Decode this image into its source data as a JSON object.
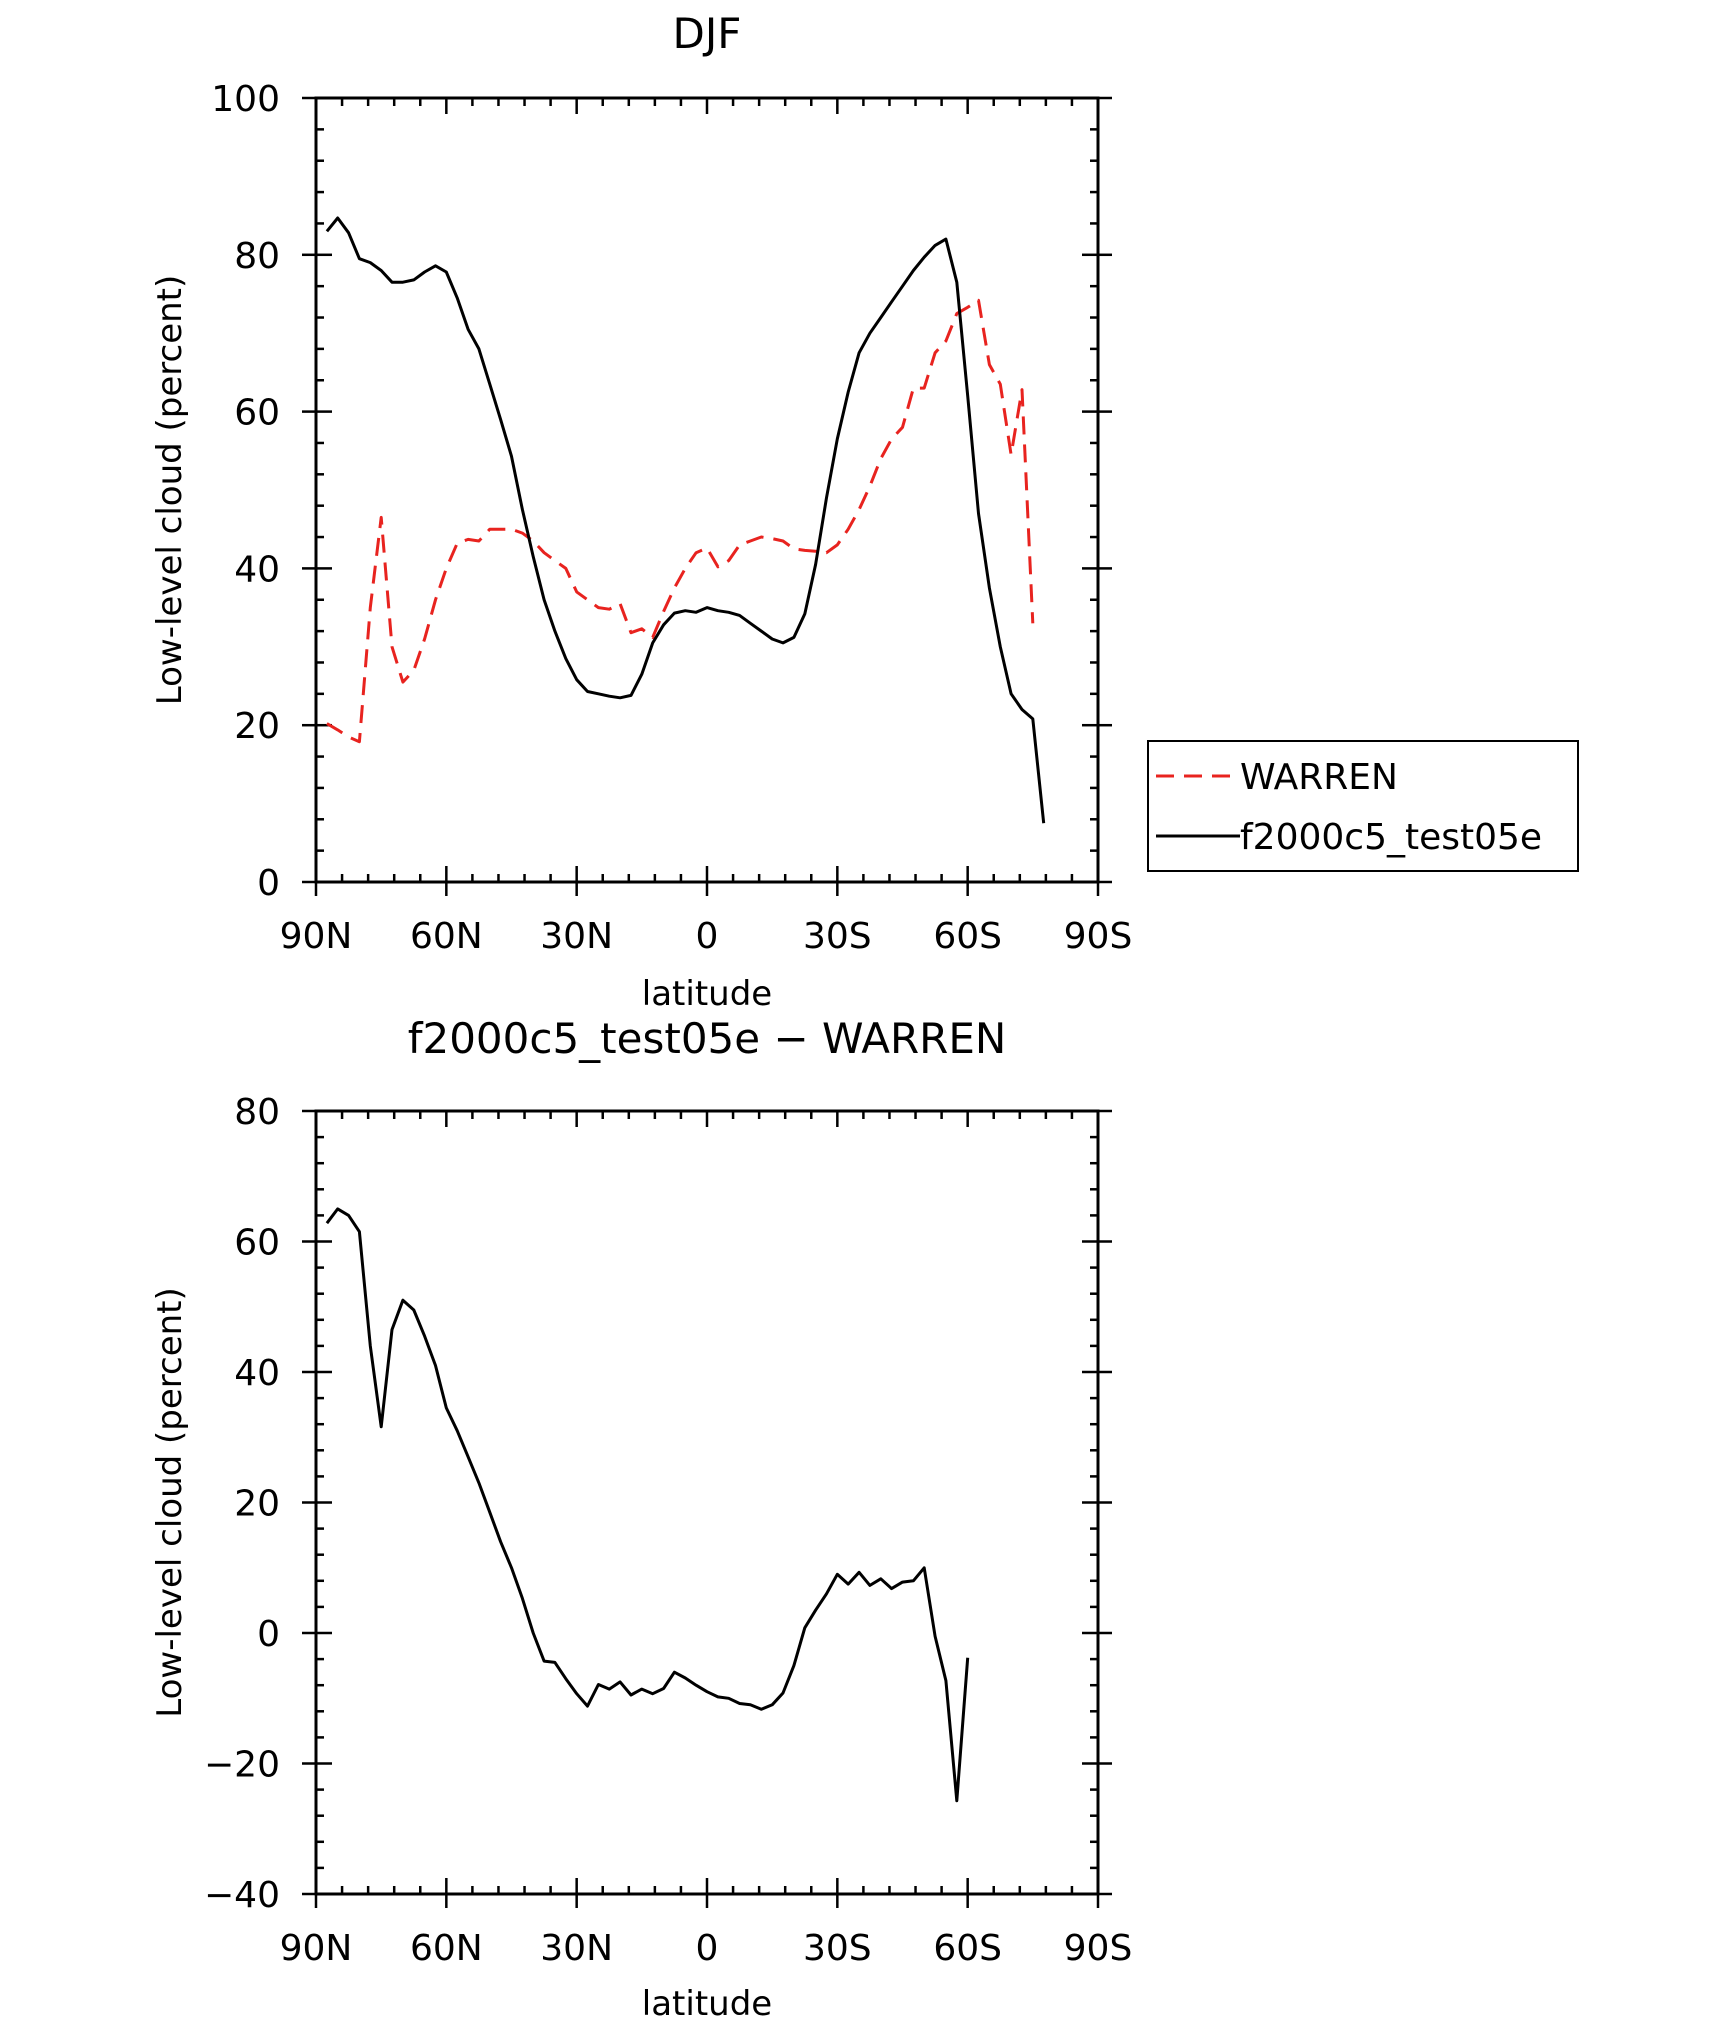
{
  "chart_data": [
    {
      "type": "line",
      "title": "DJF",
      "xlabel": "latitude",
      "ylabel": "Low-level cloud (percent)",
      "xlim": [
        90,
        -90
      ],
      "ylim": [
        0,
        100
      ],
      "xticks": [
        {
          "value": 90,
          "label": "90N"
        },
        {
          "value": 60,
          "label": "60N"
        },
        {
          "value": 30,
          "label": "30N"
        },
        {
          "value": 0,
          "label": "0"
        },
        {
          "value": -30,
          "label": "30S"
        },
        {
          "value": -60,
          "label": "60S"
        },
        {
          "value": -90,
          "label": "90S"
        }
      ],
      "yticks": [
        {
          "value": 0,
          "label": "0"
        },
        {
          "value": 20,
          "label": "20"
        },
        {
          "value": 40,
          "label": "40"
        },
        {
          "value": 60,
          "label": "60"
        },
        {
          "value": 80,
          "label": "80"
        },
        {
          "value": 100,
          "label": "100"
        }
      ],
      "legend": {
        "position": "right"
      },
      "series": [
        {
          "name": "WARREN",
          "color": "#e8231f",
          "dash": "dashed",
          "points": [
            [
              87.5,
              20.2
            ],
            [
              85,
              19.4
            ],
            [
              82.5,
              18.5
            ],
            [
              80,
              17.9
            ],
            [
              77.5,
              35
            ],
            [
              75,
              46.5
            ],
            [
              72.5,
              30
            ],
            [
              70,
              25.5
            ],
            [
              67.5,
              27
            ],
            [
              65,
              31
            ],
            [
              62.5,
              36
            ],
            [
              60,
              40
            ],
            [
              57.5,
              43.2
            ],
            [
              55,
              43.7
            ],
            [
              52.5,
              43.5
            ],
            [
              50,
              45
            ],
            [
              47.5,
              45
            ],
            [
              45,
              45
            ],
            [
              42.5,
              44.5
            ],
            [
              40,
              43.5
            ],
            [
              37.5,
              42
            ],
            [
              35,
              41
            ],
            [
              32.5,
              40
            ],
            [
              30,
              37
            ],
            [
              27.5,
              36
            ],
            [
              25,
              35
            ],
            [
              22.5,
              34.8
            ],
            [
              20,
              35.5
            ],
            [
              17.5,
              31.8
            ],
            [
              15,
              32.3
            ],
            [
              12.5,
              31.2
            ],
            [
              10,
              34.5
            ],
            [
              7.5,
              37.5
            ],
            [
              5,
              40
            ],
            [
              2.5,
              42
            ],
            [
              0,
              42.6
            ],
            [
              -2.5,
              40.2
            ],
            [
              -5,
              41
            ],
            [
              -7.5,
              43
            ],
            [
              -10,
              43.5
            ],
            [
              -12.5,
              44
            ],
            [
              -15,
              43.8
            ],
            [
              -17.5,
              43.5
            ],
            [
              -20,
              42.5
            ],
            [
              -22.5,
              42.3
            ],
            [
              -25,
              42.2
            ],
            [
              -27.5,
              42
            ],
            [
              -30,
              43
            ],
            [
              -32.5,
              45
            ],
            [
              -35,
              47.5
            ],
            [
              -37.5,
              50.5
            ],
            [
              -40,
              54
            ],
            [
              -42.5,
              56.5
            ],
            [
              -45,
              58
            ],
            [
              -47.5,
              63
            ],
            [
              -50,
              63
            ],
            [
              -52.5,
              67.5
            ],
            [
              -55,
              69
            ],
            [
              -57.5,
              72.5
            ],
            [
              -60,
              73.3
            ],
            [
              -62.5,
              74.2
            ],
            [
              -65,
              66
            ],
            [
              -67.5,
              63.5
            ],
            [
              -70,
              54.5
            ],
            [
              -72.5,
              62.8
            ],
            [
              -75,
              33
            ]
          ]
        },
        {
          "name": "f2000c5_test05e",
          "color": "#000000",
          "dash": "solid",
          "points": [
            [
              87.5,
              83
            ],
            [
              85,
              84.7
            ],
            [
              82.5,
              82.8
            ],
            [
              80,
              79.5
            ],
            [
              77.5,
              79
            ],
            [
              75,
              78
            ],
            [
              72.5,
              76.5
            ],
            [
              70,
              76.5
            ],
            [
              67.5,
              76.8
            ],
            [
              65,
              77.8
            ],
            [
              62.5,
              78.6
            ],
            [
              60,
              77.8
            ],
            [
              57.5,
              74.5
            ],
            [
              55,
              70.5
            ],
            [
              52.5,
              68
            ],
            [
              50,
              63.5
            ],
            [
              47.5,
              59
            ],
            [
              45,
              54.3
            ],
            [
              42.5,
              47.5
            ],
            [
              40,
              41.5
            ],
            [
              37.5,
              36
            ],
            [
              35,
              32
            ],
            [
              32.5,
              28.5
            ],
            [
              30,
              25.8
            ],
            [
              27.5,
              24.3
            ],
            [
              25,
              24
            ],
            [
              22.5,
              23.7
            ],
            [
              20,
              23.5
            ],
            [
              17.5,
              23.8
            ],
            [
              15,
              26.5
            ],
            [
              12.5,
              30.5
            ],
            [
              10,
              32.8
            ],
            [
              7.5,
              34.3
            ],
            [
              5,
              34.6
            ],
            [
              2.5,
              34.4
            ],
            [
              0,
              35
            ],
            [
              -2.5,
              34.6
            ],
            [
              -5,
              34.4
            ],
            [
              -7.5,
              34
            ],
            [
              -10,
              33
            ],
            [
              -12.5,
              32
            ],
            [
              -15,
              31
            ],
            [
              -17.5,
              30.5
            ],
            [
              -20,
              31.2
            ],
            [
              -22.5,
              34.2
            ],
            [
              -25,
              40.5
            ],
            [
              -27.5,
              49
            ],
            [
              -30,
              56.5
            ],
            [
              -32.5,
              62.5
            ],
            [
              -35,
              67.5
            ],
            [
              -37.5,
              70
            ],
            [
              -40,
              72
            ],
            [
              -42.5,
              74
            ],
            [
              -45,
              76
            ],
            [
              -47.5,
              78
            ],
            [
              -50,
              79.7
            ],
            [
              -52.5,
              81.2
            ],
            [
              -55,
              82
            ],
            [
              -57.5,
              76.5
            ],
            [
              -60,
              62
            ],
            [
              -62.5,
              47
            ],
            [
              -65,
              37.5
            ],
            [
              -67.5,
              30
            ],
            [
              -70,
              24
            ],
            [
              -72.5,
              22
            ],
            [
              -75,
              20.8
            ],
            [
              -77.5,
              7.5
            ]
          ]
        }
      ]
    },
    {
      "type": "line",
      "title": "f2000c5_test05e − WARREN",
      "xlabel": "latitude",
      "ylabel": "Low-level cloud (percent)",
      "xlim": [
        90,
        -90
      ],
      "ylim": [
        -40,
        80
      ],
      "xticks": [
        {
          "value": 90,
          "label": "90N"
        },
        {
          "value": 60,
          "label": "60N"
        },
        {
          "value": 30,
          "label": "30N"
        },
        {
          "value": 0,
          "label": "0"
        },
        {
          "value": -30,
          "label": "30S"
        },
        {
          "value": -60,
          "label": "60S"
        },
        {
          "value": -90,
          "label": "90S"
        }
      ],
      "yticks": [
        {
          "value": -40,
          "label": "−40"
        },
        {
          "value": -20,
          "label": "−20"
        },
        {
          "value": 0,
          "label": "0"
        },
        {
          "value": 20,
          "label": "20"
        },
        {
          "value": 40,
          "label": "40"
        },
        {
          "value": 60,
          "label": "60"
        },
        {
          "value": 80,
          "label": "80"
        }
      ],
      "series": [
        {
          "color": "#000000",
          "dash": "solid",
          "points": [
            [
              87.5,
              62.8
            ],
            [
              85,
              65
            ],
            [
              82.5,
              64
            ],
            [
              80,
              61.5
            ],
            [
              77.5,
              44
            ],
            [
              75,
              31.6
            ],
            [
              72.5,
              46.5
            ],
            [
              70,
              51
            ],
            [
              67.5,
              49.5
            ],
            [
              65,
              45.5
            ],
            [
              62.5,
              41
            ],
            [
              60,
              34.5
            ],
            [
              57.5,
              31
            ],
            [
              55,
              27
            ],
            [
              52.5,
              23
            ],
            [
              50,
              18.5
            ],
            [
              47.5,
              14
            ],
            [
              45,
              10
            ],
            [
              42.5,
              5.3
            ],
            [
              40,
              0
            ],
            [
              37.5,
              -4.3
            ],
            [
              35,
              -4.5
            ],
            [
              32.5,
              -7
            ],
            [
              30,
              -9.3
            ],
            [
              27.5,
              -11.2
            ],
            [
              25,
              -7.9
            ],
            [
              22.5,
              -8.6
            ],
            [
              20,
              -7.5
            ],
            [
              17.5,
              -9.5
            ],
            [
              15,
              -8.6
            ],
            [
              12.5,
              -9.3
            ],
            [
              10,
              -8.5
            ],
            [
              7.5,
              -6
            ],
            [
              5,
              -6.9
            ],
            [
              2.5,
              -8
            ],
            [
              0,
              -9
            ],
            [
              -2.5,
              -9.8
            ],
            [
              -5,
              -10
            ],
            [
              -7.5,
              -10.8
            ],
            [
              -10,
              -11
            ],
            [
              -12.5,
              -11.7
            ],
            [
              -15,
              -11
            ],
            [
              -17.5,
              -9.2
            ],
            [
              -20,
              -5
            ],
            [
              -22.5,
              0.8
            ],
            [
              -25,
              3.5
            ],
            [
              -27.5,
              6
            ],
            [
              -30,
              9
            ],
            [
              -32.5,
              7.5
            ],
            [
              -35,
              9.3
            ],
            [
              -37.5,
              7.3
            ],
            [
              -40,
              8.3
            ],
            [
              -42.5,
              6.8
            ],
            [
              -45,
              7.8
            ],
            [
              -47.5,
              8
            ],
            [
              -50,
              10
            ],
            [
              -52.5,
              -0.5
            ],
            [
              -55,
              -7.3
            ],
            [
              -57.5,
              -25.7
            ],
            [
              -60,
              -3.8
            ]
          ]
        }
      ]
    }
  ]
}
